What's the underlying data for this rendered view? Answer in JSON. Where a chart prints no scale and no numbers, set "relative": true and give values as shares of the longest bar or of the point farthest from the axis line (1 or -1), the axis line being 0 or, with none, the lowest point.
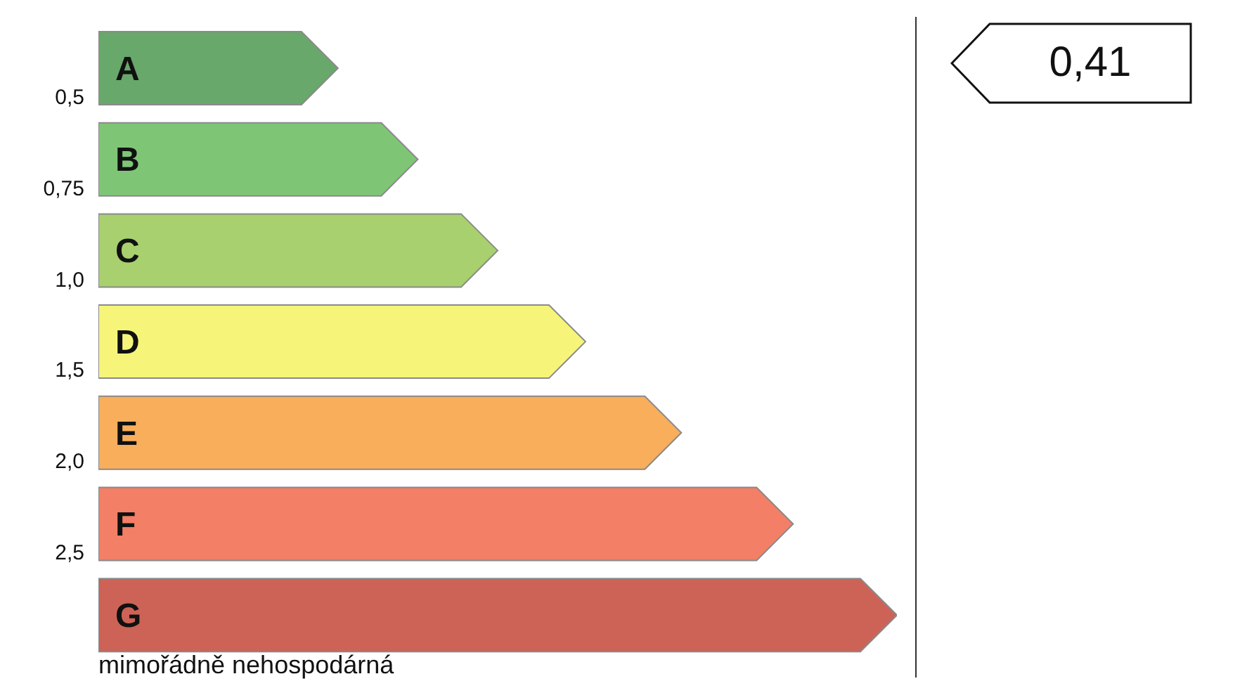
{
  "chart_data": {
    "type": "bar",
    "orientation": "horizontal",
    "relative": true,
    "categories": [
      "A",
      "B",
      "C",
      "D",
      "E",
      "F",
      "G"
    ],
    "values": [
      0.3,
      0.4,
      0.5,
      0.61,
      0.73,
      0.87,
      1
    ],
    "colors": [
      "#68a86a",
      "#7ec676",
      "#a8d06e",
      "#f6f57a",
      "#f9ae5b",
      "#f27f66",
      "#cd6356"
    ],
    "annotations": [
      "0,5",
      "0,75",
      "1,0",
      "1,5",
      "2,0",
      "2,5",
      "mimořádně nehospodárná",
      "0,41"
    ]
  }
}
